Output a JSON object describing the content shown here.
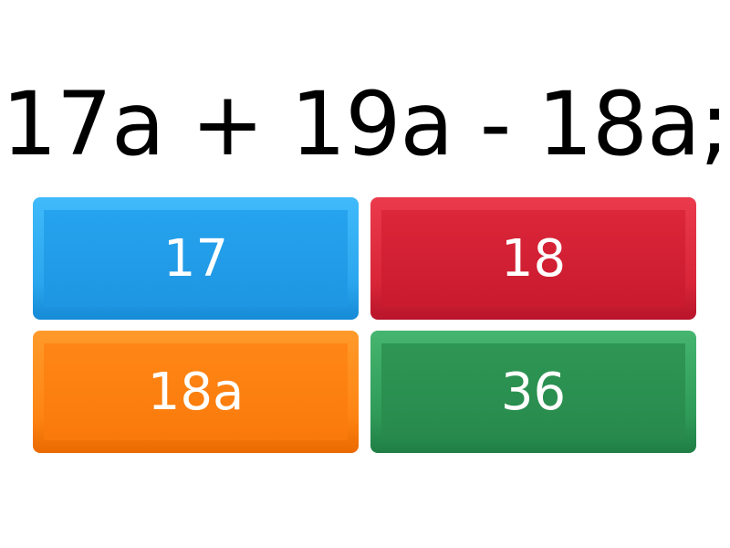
{
  "question": "17a + 19a - 18a;",
  "answers": [
    {
      "label": "17",
      "color": "#22a0ea"
    },
    {
      "label": "18",
      "color": "#d42035"
    },
    {
      "label": "18a",
      "color": "#fb7c0e"
    },
    {
      "label": "36",
      "color": "#2a9150"
    }
  ]
}
